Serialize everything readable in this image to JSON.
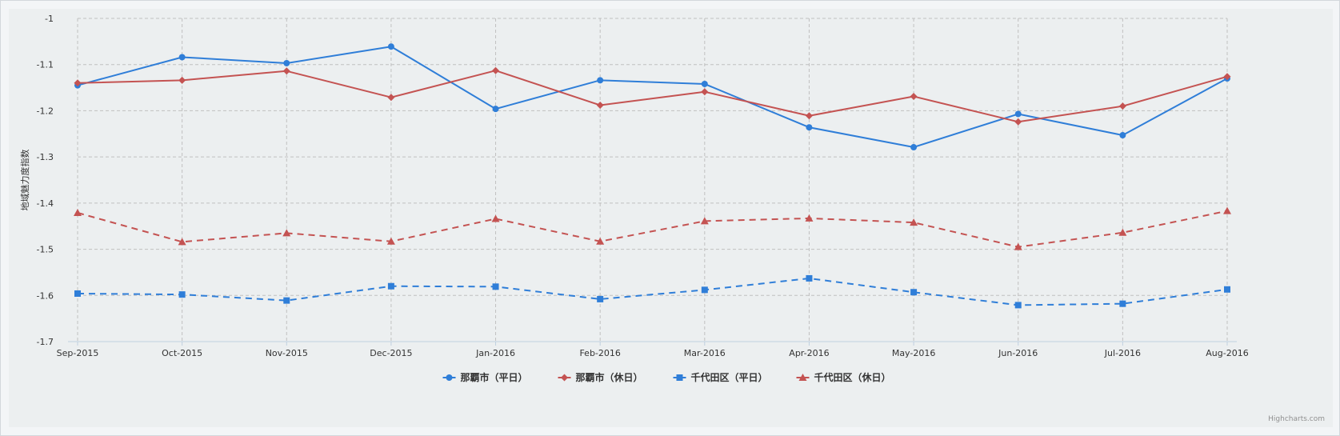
{
  "chart_data": {
    "type": "line",
    "title": "",
    "xlabel": "",
    "ylabel": "地域魅力度指数",
    "ylim": [
      -1.7,
      -1
    ],
    "yticks": [
      -1,
      -1.1,
      -1.2,
      -1.3,
      -1.4,
      -1.5,
      -1.6,
      -1.7
    ],
    "categories": [
      "Sep-2015",
      "Oct-2015",
      "Nov-2015",
      "Dec-2015",
      "Jan-2016",
      "Feb-2016",
      "Mar-2016",
      "Apr-2016",
      "May-2016",
      "Jun-2016",
      "Jul-2016",
      "Aug-2016"
    ],
    "grid": true,
    "legend_position": "bottom-center",
    "series": [
      {
        "name": "那覇市（平日）",
        "color": "#2f7ed8",
        "marker": "circle",
        "dash": "solid",
        "values": [
          -1.145,
          -1.084,
          -1.097,
          -1.061,
          -1.196,
          -1.134,
          -1.142,
          -1.236,
          -1.279,
          -1.207,
          -1.253,
          -1.13
        ]
      },
      {
        "name": "那覇市（休日）",
        "color": "#c45352",
        "marker": "diamond",
        "dash": "solid",
        "values": [
          -1.14,
          -1.134,
          -1.114,
          -1.171,
          -1.113,
          -1.188,
          -1.159,
          -1.211,
          -1.169,
          -1.224,
          -1.19,
          -1.126
        ]
      },
      {
        "name": "千代田区（平日）",
        "color": "#2f7ed8",
        "marker": "square",
        "dash": "dash",
        "values": [
          -1.596,
          -1.598,
          -1.611,
          -1.58,
          -1.581,
          -1.608,
          -1.588,
          -1.563,
          -1.593,
          -1.621,
          -1.618,
          -1.587
        ]
      },
      {
        "name": "千代田区（休日）",
        "color": "#c45352",
        "marker": "triangle",
        "dash": "dash",
        "values": [
          -1.421,
          -1.484,
          -1.465,
          -1.483,
          -1.434,
          -1.483,
          -1.439,
          -1.433,
          -1.442,
          -1.495,
          -1.464,
          -1.417
        ]
      }
    ]
  },
  "credit": "Highcharts.com"
}
